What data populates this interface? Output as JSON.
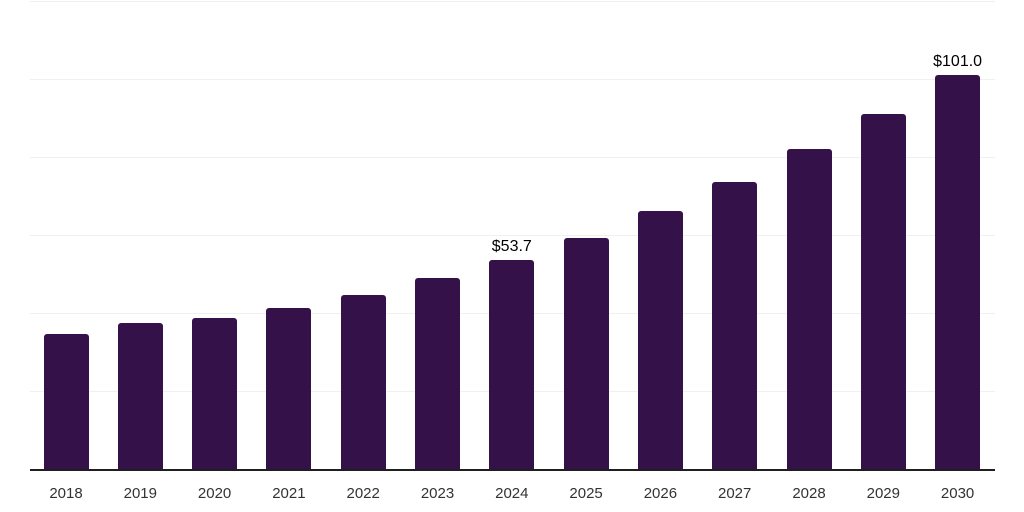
{
  "colors": {
    "bar": "#35114a",
    "gridline": "#f0f0f0",
    "axis_line": "#1f1f1f",
    "value_label": "#000000",
    "tick_label": "#333333",
    "background": "#ffffff"
  },
  "chart_data": {
    "type": "bar",
    "title": "",
    "xlabel": "",
    "ylabel": "",
    "categories": [
      "2018",
      "2019",
      "2020",
      "2021",
      "2022",
      "2023",
      "2024",
      "2025",
      "2026",
      "2027",
      "2028",
      "2029",
      "2030"
    ],
    "values": [
      34.6,
      37.4,
      38.7,
      41.3,
      44.6,
      49.0,
      53.7,
      59.2,
      66.1,
      73.6,
      82.0,
      91.0,
      101.0
    ],
    "value_labels": [
      null,
      null,
      null,
      null,
      null,
      null,
      "$53.7",
      null,
      null,
      null,
      null,
      null,
      "$101.0"
    ],
    "ylim": [
      0,
      120
    ],
    "gridline_values": [
      20,
      40,
      60,
      80,
      100,
      120
    ],
    "grid": "horizontal-only",
    "legend_position": "none",
    "y_axis_labels_visible": false
  }
}
